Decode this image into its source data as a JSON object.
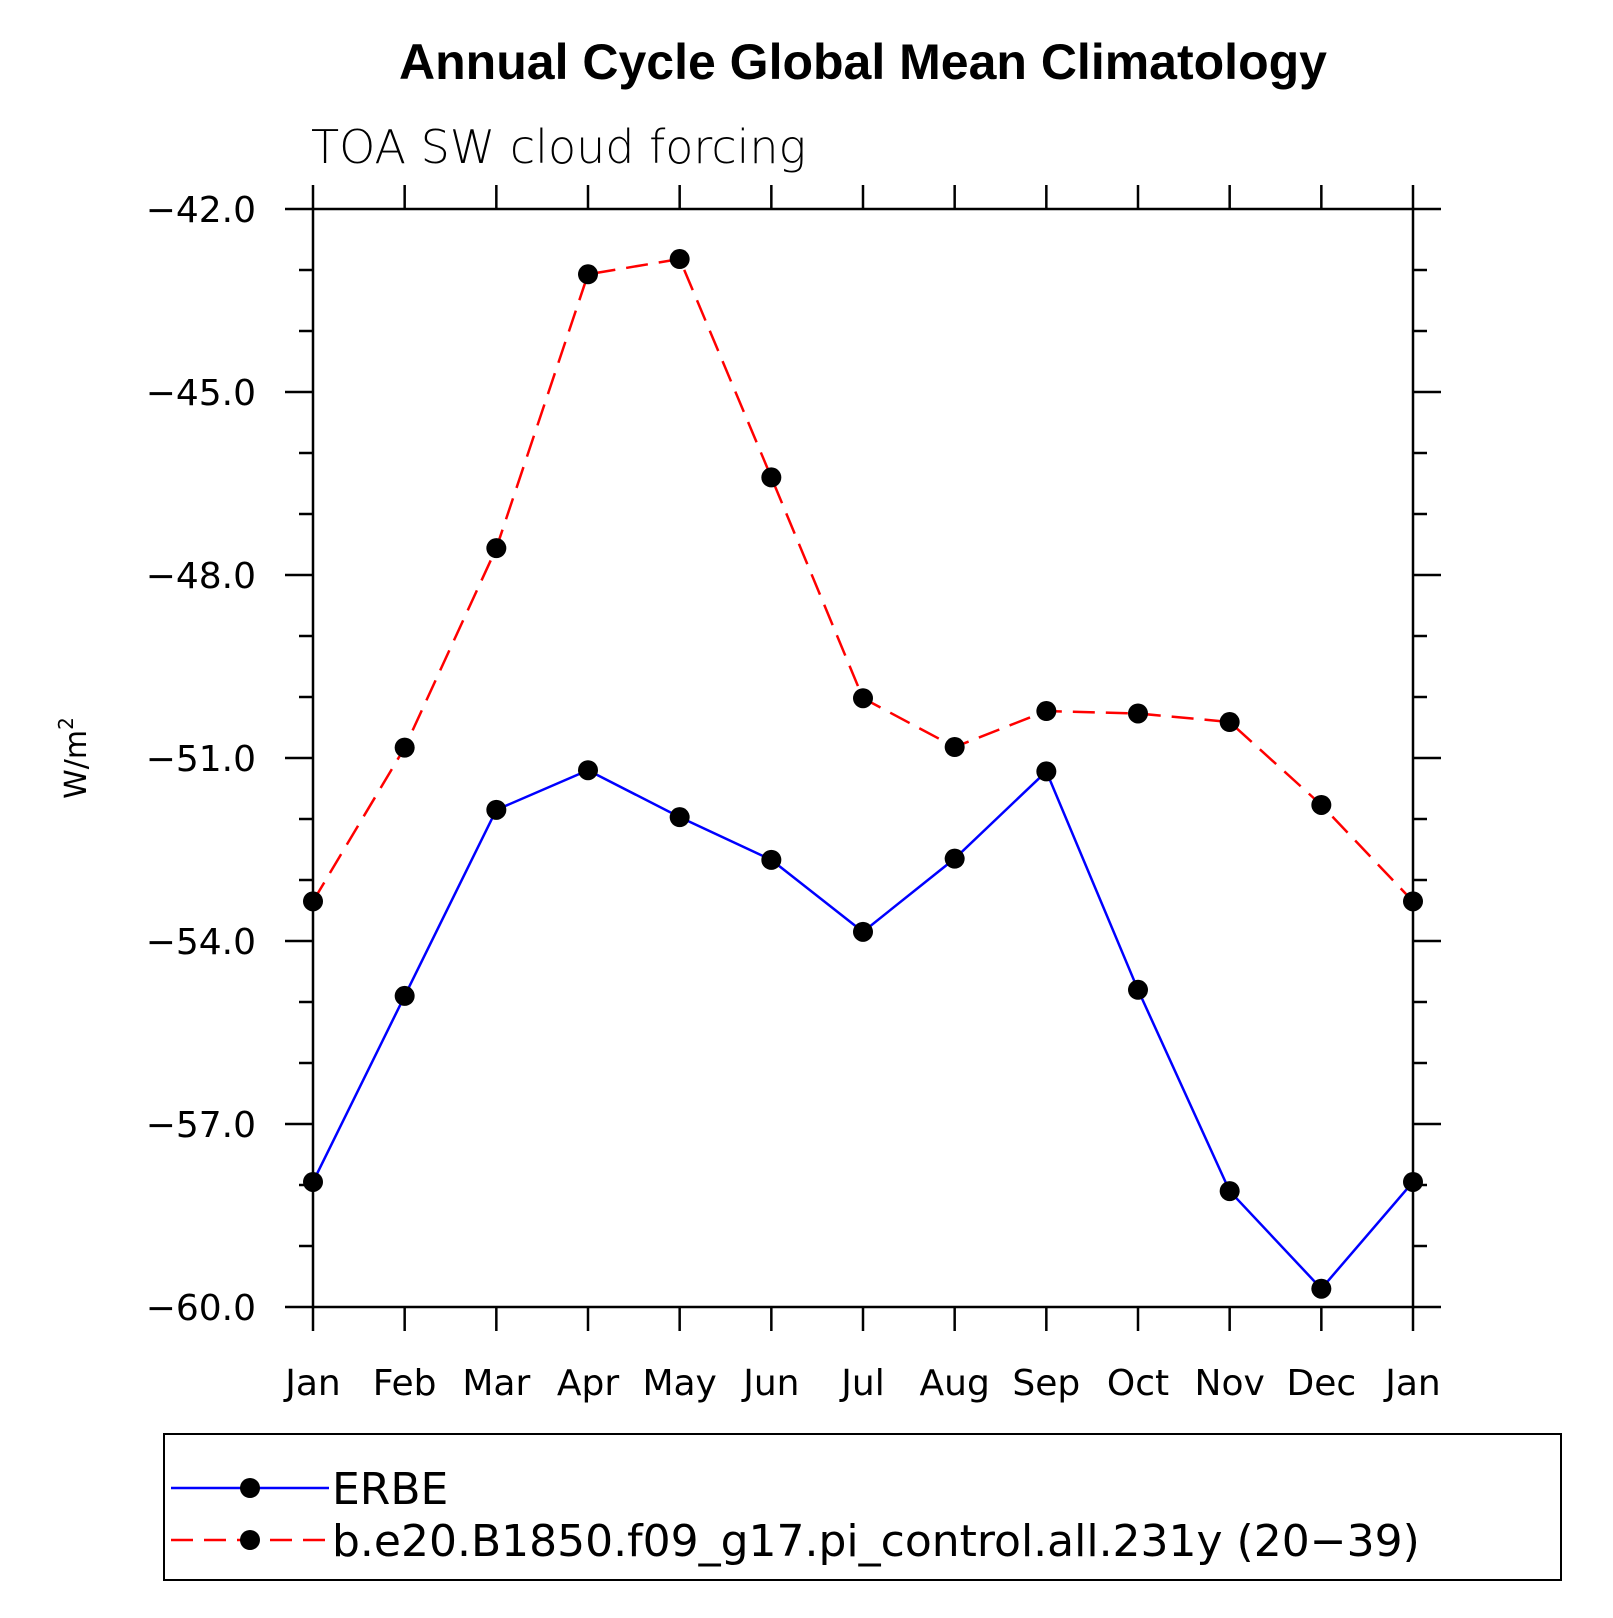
{
  "chart_data": {
    "type": "line",
    "title": "Annual Cycle Global Mean Climatology",
    "subtitle": "TOA SW cloud forcing",
    "xlabel": "",
    "ylabel": "W/m",
    "ylabel_superscript": "2",
    "categories": [
      "Jan",
      "Feb",
      "Mar",
      "Apr",
      "May",
      "Jun",
      "Jul",
      "Aug",
      "Sep",
      "Oct",
      "Nov",
      "Dec",
      "Jan"
    ],
    "ylim": [
      -60.0,
      -42.0
    ],
    "yticks": [
      -42.0,
      -45.0,
      -48.0,
      -51.0,
      -54.0,
      -57.0,
      -60.0
    ],
    "ytick_labels": [
      "−42.0",
      "−45.0",
      "−48.0",
      "−51.0",
      "−54.0",
      "−57.0",
      "−60.0"
    ],
    "yminor_step": 1.0,
    "grid": false,
    "legend_position": "bottom",
    "series": [
      {
        "name": "ERBE",
        "color": "#0000ff",
        "style": "solid",
        "marker": "filled-circle",
        "values": [
          -57.95,
          -54.9,
          -51.85,
          -51.2,
          -51.97,
          -52.67,
          -53.85,
          -52.65,
          -51.22,
          -54.8,
          -58.1,
          -59.7,
          -57.95
        ]
      },
      {
        "name": "b.e20.B1850.f09_g17.pi_control.all.231y (20−39)",
        "color": "#ff0000",
        "style": "dashed",
        "marker": "filled-circle",
        "values": [
          -53.35,
          -50.83,
          -47.56,
          -43.07,
          -42.82,
          -46.4,
          -50.02,
          -50.82,
          -50.23,
          -50.27,
          -50.41,
          -51.77,
          -53.35
        ]
      }
    ]
  }
}
